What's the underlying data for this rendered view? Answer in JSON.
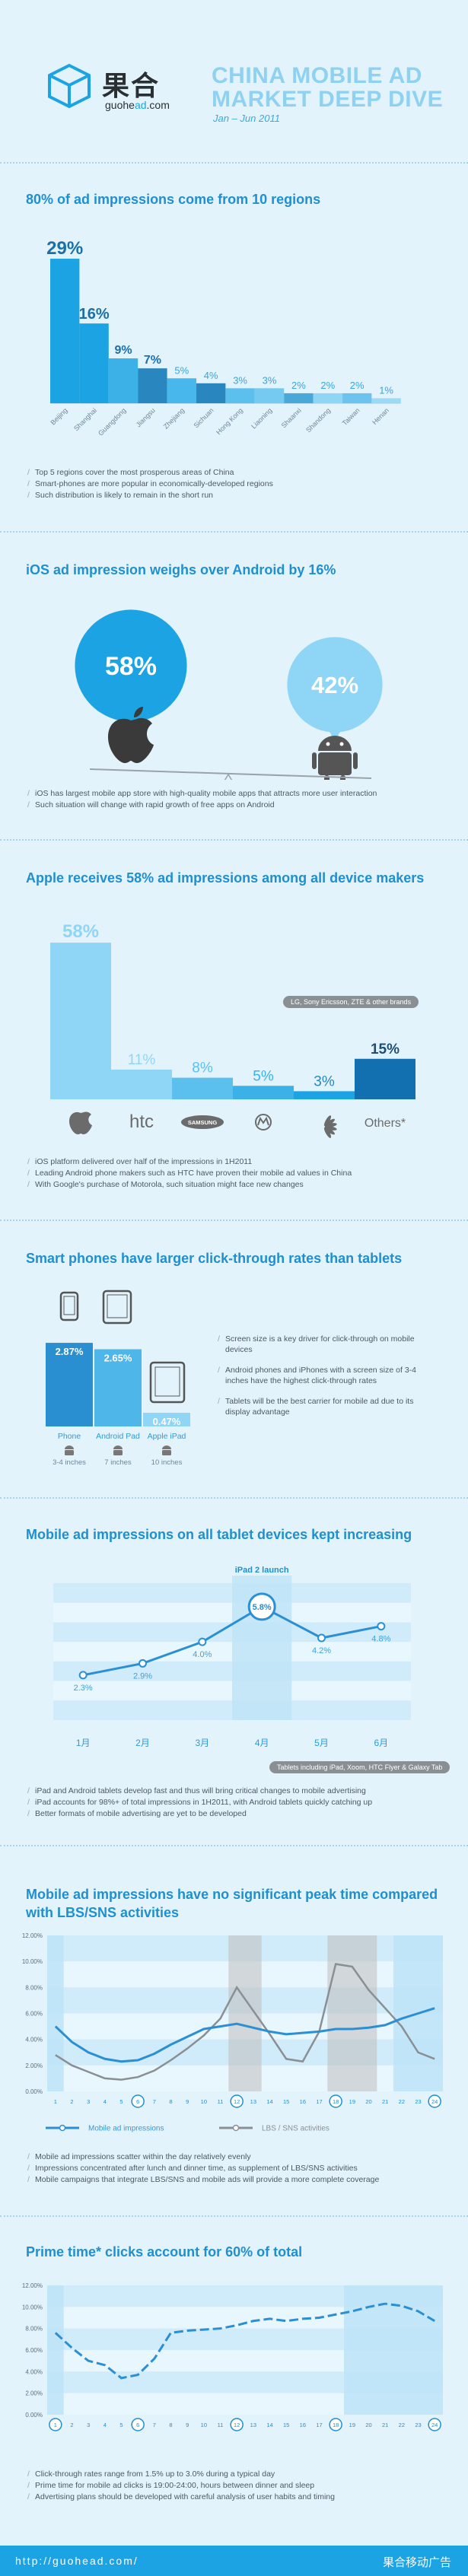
{
  "header": {
    "logo_cn": "果合",
    "logo_url_pre": "guohe",
    "logo_url_accent": "ad",
    "logo_url_post": ".com",
    "title_line1": "CHINA MOBILE AD",
    "title_line2": "MARKET DEEP DIVE",
    "subtitle": "Jan – Jun 2011"
  },
  "sections": {
    "regions": {
      "title": "80% of ad impressions come from 10 regions",
      "notes": [
        "Top 5 regions cover the most prosperous areas of China",
        "Smart-phones are more popular in economically-developed regions",
        "Such distribution is likely to remain in the short run"
      ]
    },
    "ios": {
      "title": "iOS ad impression weighs over Android by 16%",
      "notes": [
        "iOS has largest mobile app store with high-quality mobile apps that attracts more user interaction",
        "Such situation will change with rapid growth of free apps on Android"
      ]
    },
    "makers": {
      "title": "Apple receives 58% ad impressions among all device makers",
      "badge": "LG, Sony Ericsson, ZTE & other brands",
      "notes": [
        "iOS platform delivered over half of the impressions in 1H2011",
        "Leading Android phone makers such as HTC have proven their mobile ad values in China",
        "With Google's purchase of Motorola, such situation might face new changes"
      ]
    },
    "ctr": {
      "title": "Smart phones have larger click-through rates than tablets",
      "notes": [
        "Screen size is a key driver for click-through on mobile devices",
        "Android phones and iPhones with a screen size of 3-4 inches have the highest click-through rates",
        "Tablets will be the best carrier for mobile ad due to its display advantage"
      ]
    },
    "tablet": {
      "title": "Mobile ad impressions on all tablet devices kept increasing",
      "annotation": "iPad 2 launch",
      "badge": "Tablets including iPad, Xoom, HTC Flyer & Galaxy Tab",
      "notes": [
        "iPad and Android tablets develop fast and thus will bring critical changes to mobile advertising",
        "iPad accounts for 98%+ of total impressions in 1H2011, with Android tablets quickly catching up",
        "Better formats of mobile advertising are yet to be developed"
      ]
    },
    "peak": {
      "title_line1": "Mobile ad impressions have no significant peak time compared",
      "title_line2": "with LBS/SNS activities",
      "notes": [
        "Mobile ad impressions scatter within the day relatively evenly",
        "Impressions concentrated after lunch and dinner time, as supplement of LBS/SNS activities",
        "Mobile campaigns that integrate LBS/SNS and mobile ads will provide a more complete coverage"
      ]
    },
    "prime": {
      "title": "Prime time* clicks account for 60% of total",
      "notes": [
        "Click-through rates range from 1.5% up to 3.0% during a typical day",
        "Prime time for mobile ad clicks is 19:00-24:00, hours between dinner and sleep",
        "Advertising plans should be developed with careful analysis of user habits and timing"
      ]
    }
  },
  "footer": {
    "url": "http://guohead.com/",
    "brand": "果合移动广告"
  },
  "chart_data": [
    {
      "type": "bar",
      "categories": [
        "Beijing",
        "Shanghai",
        "Guangdong",
        "Jiangsu",
        "Zhejiang",
        "Sichuan",
        "Hong Kong",
        "Liaoning",
        "Shaanxi",
        "Shandong",
        "Taiwan",
        "Henan"
      ],
      "values": [
        29,
        16,
        9,
        7,
        5,
        4,
        3,
        3,
        2,
        2,
        2,
        1
      ],
      "labels": [
        "29%",
        "16%",
        "9%",
        "7%",
        "5%",
        "4%",
        "3%",
        "3%",
        "2%",
        "2%",
        "2%",
        "1%"
      ]
    },
    {
      "type": "pie",
      "categories": [
        "iOS",
        "Android"
      ],
      "values": [
        58,
        42
      ],
      "labels": [
        "58%",
        "42%"
      ],
      "colors": [
        "#1ba3e3",
        "#8fd5f5"
      ]
    },
    {
      "type": "bar",
      "categories": [
        "Apple",
        "HTC",
        "Samsung",
        "Motorola",
        "Huawei",
        "Others*"
      ],
      "category_labels": [
        "",
        "htc",
        "SAMSUNG",
        "",
        "",
        "Others*"
      ],
      "values": [
        58,
        11,
        8,
        5,
        3,
        15
      ],
      "labels": [
        "58%",
        "11%",
        "8%",
        "5%",
        "3%",
        "15%"
      ]
    },
    {
      "type": "bar",
      "categories": [
        "Phone",
        "Android Pad",
        "Apple iPad"
      ],
      "sizes": [
        "3-4 inches",
        "7 inches",
        "10 inches"
      ],
      "values": [
        2.87,
        2.65,
        0.47
      ],
      "labels": [
        "2.87%",
        "2.65%",
        "0.47%"
      ]
    },
    {
      "type": "line",
      "x": [
        "1月",
        "2月",
        "3月",
        "4月",
        "5月",
        "6月"
      ],
      "values": [
        2.3,
        2.9,
        4.0,
        5.8,
        4.2,
        4.8
      ],
      "labels": [
        "2.3%",
        "2.9%",
        "4.0%",
        "5.8%",
        "4.2%",
        "4.8%"
      ],
      "ylim": [
        0,
        7
      ]
    },
    {
      "type": "line",
      "x": [
        "1",
        "2",
        "3",
        "4",
        "5",
        "6",
        "7",
        "8",
        "9",
        "10",
        "11",
        "12",
        "13",
        "14",
        "15",
        "16",
        "17",
        "18",
        "19",
        "20",
        "21",
        "22",
        "23",
        "24"
      ],
      "yticks": [
        "0.00%",
        "2.00%",
        "4.00%",
        "6.00%",
        "8.00%",
        "10.00%",
        "12.00%"
      ],
      "ylim": [
        0,
        12
      ],
      "series": [
        {
          "name": "Mobile ad impressions",
          "values": [
            5.0,
            3.8,
            3.0,
            2.5,
            2.3,
            2.4,
            2.9,
            3.6,
            4.2,
            4.8,
            5.0,
            5.2,
            4.9,
            4.6,
            4.4,
            4.5,
            4.6,
            4.8,
            4.8,
            4.9,
            5.1,
            5.6,
            6.0,
            6.4
          ]
        },
        {
          "name": "LBS / SNS activities",
          "values": [
            2.8,
            2.0,
            1.5,
            1.0,
            0.9,
            1.1,
            1.6,
            2.4,
            3.3,
            4.3,
            5.6,
            8.0,
            6.2,
            4.4,
            2.5,
            2.3,
            4.6,
            9.8,
            9.6,
            7.8,
            6.4,
            5.0,
            3.0,
            2.5
          ]
        }
      ]
    },
    {
      "type": "line",
      "x": [
        "1",
        "2",
        "3",
        "4",
        "5",
        "6",
        "7",
        "8",
        "9",
        "10",
        "11",
        "12",
        "13",
        "14",
        "15",
        "16",
        "17",
        "18",
        "19",
        "20",
        "21",
        "22",
        "23",
        "24"
      ],
      "yticks": [
        "0.00%",
        "2.00%",
        "4.00%",
        "6.00%",
        "8.00%",
        "10.00%",
        "12.00%"
      ],
      "ylim": [
        0,
        12
      ],
      "values": [
        7.6,
        6.2,
        5.0,
        4.6,
        3.4,
        3.7,
        5.2,
        7.6,
        7.8,
        7.9,
        8.0,
        8.3,
        8.7,
        8.9,
        8.7,
        8.9,
        9.0,
        9.3,
        9.6,
        10.0,
        10.3,
        10.1,
        9.6,
        8.7
      ]
    }
  ]
}
